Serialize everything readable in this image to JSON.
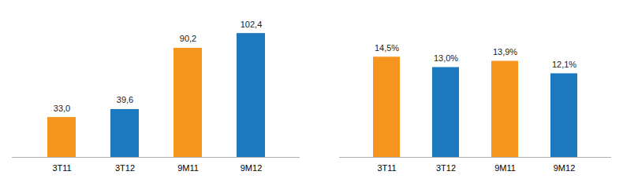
{
  "chart_data": [
    {
      "type": "bar",
      "categories": [
        "3T11",
        "3T12",
        "9M11",
        "9M12"
      ],
      "values": [
        33.0,
        39.6,
        90.2,
        102.4
      ],
      "value_labels": [
        "33,0",
        "39,6",
        "90,2",
        "102,4"
      ],
      "colors": [
        "#f7941d",
        "#1c79c0",
        "#f7941d",
        "#1c79c0"
      ],
      "ylim": [
        0,
        120
      ],
      "data_labels": true,
      "tick_labels": "x"
    },
    {
      "type": "bar",
      "categories": [
        "3T11",
        "3T12",
        "9M11",
        "9M12"
      ],
      "values": [
        14.5,
        13.0,
        13.9,
        12.1
      ],
      "value_labels": [
        "14,5%",
        "13,0%",
        "13,9%",
        "12,1%"
      ],
      "colors": [
        "#f7941d",
        "#1c79c0",
        "#f7941d",
        "#1c79c0"
      ],
      "ylim": [
        0,
        21
      ],
      "data_labels": true,
      "tick_labels": "x"
    }
  ]
}
